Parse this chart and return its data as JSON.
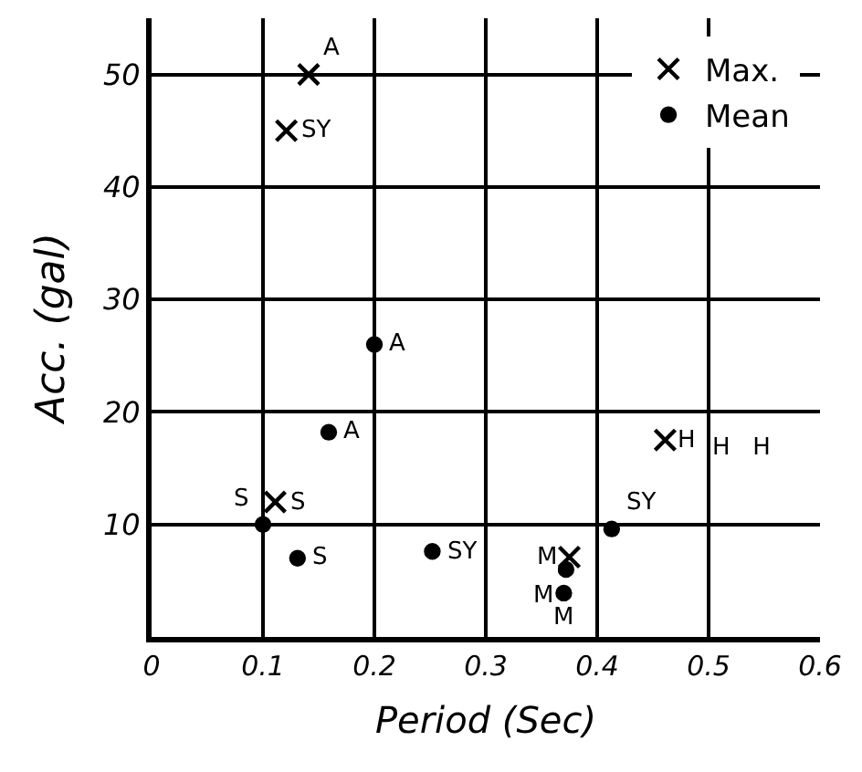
{
  "chart_data": {
    "type": "scatter",
    "xlabel": "Period (Sec)",
    "ylabel": "Acc. (gal)",
    "xlim": [
      0,
      0.6
    ],
    "ylim": [
      0,
      55
    ],
    "xticks": [
      0,
      0.1,
      0.2,
      0.3,
      0.4,
      0.5,
      0.6
    ],
    "yticks": [
      10,
      20,
      30,
      40,
      50
    ],
    "grid": true,
    "legend": "top right",
    "series": [
      {
        "name": "Max.",
        "color": "#000000",
        "marker": "cross",
        "x": [
          0.141,
          0.121,
          0.111,
          0.461,
          0.375
        ],
        "values": [
          50,
          45,
          12,
          17.5,
          7.1
        ],
        "value_labels": [
          "A",
          "SY",
          "S",
          "H",
          "M"
        ]
      },
      {
        "name": "Mean",
        "color": "#000000",
        "marker": "circle",
        "x": [
          0.2,
          0.159,
          0.1,
          0.131,
          0.252,
          0.413,
          0.372,
          0.37
        ],
        "values": [
          26,
          18.2,
          10,
          7,
          7.6,
          9.6,
          6,
          3.9
        ],
        "value_labels": [
          "A",
          "A",
          "S",
          "S",
          "SY",
          "SY",
          "M",
          "M"
        ]
      }
    ],
    "annotations": [
      "H H"
    ]
  }
}
